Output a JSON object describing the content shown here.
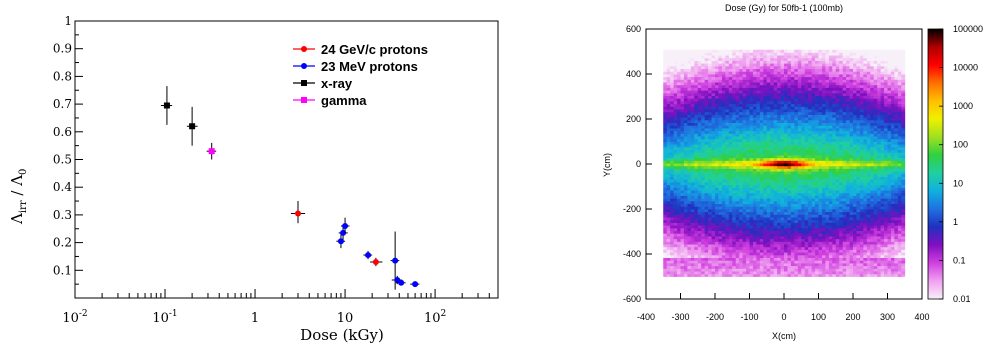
{
  "chart_data": [
    {
      "type": "scatter",
      "xlabel": "Dose (kGy)",
      "ylabel_main": "Λ",
      "ylabel_sub": "irr",
      "ylabel_sep": " / ",
      "ylabel_main2": "Λ",
      "ylabel_sub2": "0",
      "xscale": "log",
      "xlim": [
        0.01,
        500
      ],
      "ylim": [
        0,
        1
      ],
      "x_ticks": [
        {
          "value": 0.01,
          "base": "10",
          "exp": "-2"
        },
        {
          "value": 0.1,
          "base": "10",
          "exp": "-1"
        },
        {
          "value": 1,
          "base": "1",
          "exp": ""
        },
        {
          "value": 10,
          "base": "10",
          "exp": ""
        },
        {
          "value": 100,
          "base": "10",
          "exp": "2"
        }
      ],
      "y_ticks": [
        0.1,
        0.2,
        0.3,
        0.4,
        0.5,
        0.6,
        0.7,
        0.8,
        0.9,
        1
      ],
      "y_tick_labels": [
        "0.1",
        "0.2",
        "0.3",
        "0.4",
        "0.5",
        "0.6",
        "0.7",
        "0.8",
        "0.9",
        "1"
      ],
      "legend_position": "top-right",
      "series": [
        {
          "name": "24 GeV/c protons",
          "color": "#ff0000",
          "marker": "circle",
          "points": [
            {
              "x": 3.0,
              "y": 0.305,
              "xlo": 2.5,
              "xhi": 3.6,
              "ylo": 0.27,
              "yhi": 0.35
            },
            {
              "x": 22,
              "y": 0.13,
              "xlo": 19,
              "xhi": 26,
              "ylo": 0.115,
              "yhi": 0.145
            }
          ]
        },
        {
          "name": "23 MeV protons",
          "color": "#0000ff",
          "marker": "circle",
          "points": [
            {
              "x": 9,
              "y": 0.205,
              "xlo": 8,
              "xhi": 10,
              "ylo": 0.18,
              "yhi": 0.23
            },
            {
              "x": 9.5,
              "y": 0.235,
              "xlo": 8.5,
              "xhi": 10.7,
              "ylo": 0.21,
              "yhi": 0.26
            },
            {
              "x": 10,
              "y": 0.26,
              "xlo": 9,
              "xhi": 11.2,
              "ylo": 0.235,
              "yhi": 0.29
            },
            {
              "x": 18,
              "y": 0.155,
              "xlo": 16,
              "xhi": 20,
              "ylo": 0.14,
              "yhi": 0.17
            },
            {
              "x": 36,
              "y": 0.135,
              "xlo": 32,
              "xhi": 40,
              "ylo": 0.03,
              "yhi": 0.24
            },
            {
              "x": 38,
              "y": 0.065,
              "xlo": 33,
              "xhi": 43,
              "ylo": 0.05,
              "yhi": 0.08
            },
            {
              "x": 42,
              "y": 0.055,
              "xlo": 37,
              "xhi": 47,
              "ylo": 0.045,
              "yhi": 0.065
            },
            {
              "x": 60,
              "y": 0.05,
              "xlo": 53,
              "xhi": 67,
              "ylo": 0.04,
              "yhi": 0.06
            }
          ]
        },
        {
          "name": "x-ray",
          "color": "#000000",
          "marker": "square",
          "points": [
            {
              "x": 0.105,
              "y": 0.695,
              "xlo": 0.09,
              "xhi": 0.12,
              "ylo": 0.625,
              "yhi": 0.765
            },
            {
              "x": 0.2,
              "y": 0.62,
              "xlo": 0.175,
              "xhi": 0.23,
              "ylo": 0.55,
              "yhi": 0.69
            }
          ]
        },
        {
          "name": "gamma",
          "color": "#ff00ff",
          "marker": "square",
          "points": [
            {
              "x": 0.33,
              "y": 0.53,
              "xlo": 0.29,
              "xhi": 0.37,
              "ylo": 0.5,
              "yhi": 0.56
            }
          ]
        }
      ]
    },
    {
      "type": "heatmap",
      "title": "Dose (Gy) for 50fb-1 (100mb)",
      "xlabel": "X(cm)",
      "ylabel": "Y(cm)",
      "xlim": [
        -400,
        400
      ],
      "ylim": [
        -600,
        600
      ],
      "x_ticks": [
        -400,
        -300,
        -200,
        -100,
        0,
        100,
        200,
        300,
        400
      ],
      "x_tick_labels": [
        "-400",
        "-300",
        "-200",
        "-100",
        "0",
        "100",
        "200",
        "300",
        "400"
      ],
      "y_ticks": [
        -600,
        -400,
        -200,
        0,
        200,
        400,
        600
      ],
      "y_tick_labels": [
        "-600",
        "-400",
        "-200",
        "0",
        "200",
        "400",
        "600"
      ],
      "data_extent": {
        "x": [
          -350,
          350
        ],
        "y": [
          -500,
          500
        ]
      },
      "colorbar": {
        "scale": "log",
        "min": 0.01,
        "max": 100000,
        "ticks": [
          0.01,
          0.1,
          1,
          10,
          100,
          1000,
          10000,
          100000
        ],
        "tick_labels": [
          "0.01",
          "0.1",
          "1",
          "10",
          "100",
          "1000",
          "10000",
          "100000"
        ],
        "stops": [
          "#f8f0f8",
          "#f0a0f0",
          "#d040e0",
          "#8010c0",
          "#2030c0",
          "#2070e0",
          "#10b0e0",
          "#20d0a0",
          "#30d040",
          "#a0e020",
          "#f0f000",
          "#ffc000",
          "#ff7000",
          "#ff0000",
          "#b00000",
          "#000000"
        ]
      }
    }
  ]
}
